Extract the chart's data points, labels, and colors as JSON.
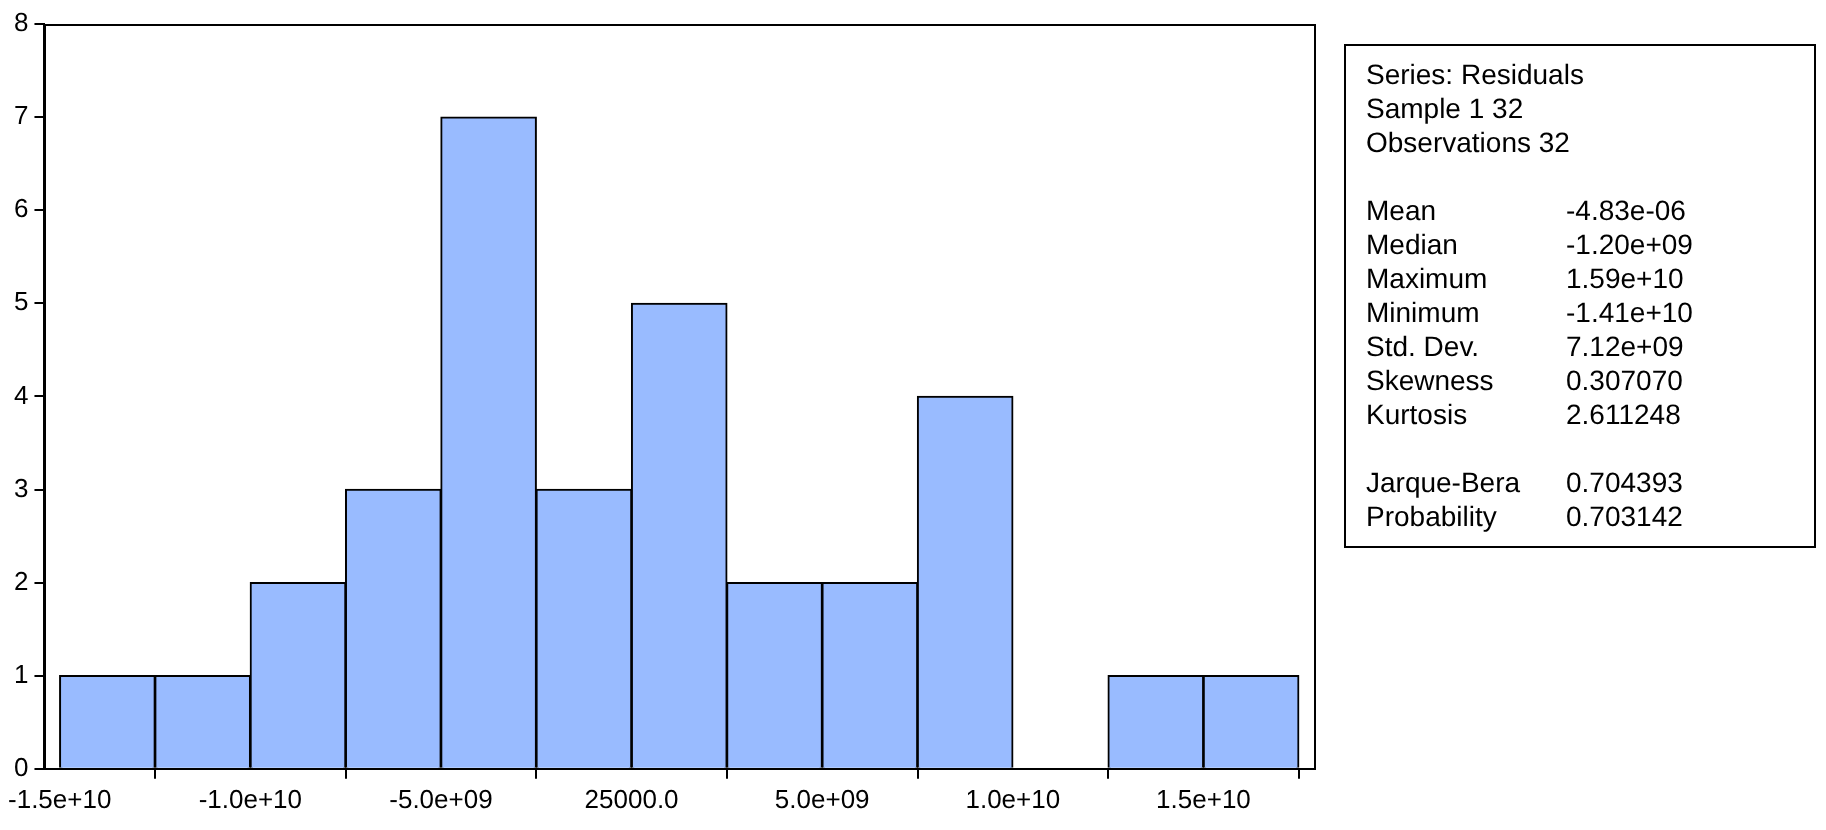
{
  "chart_data": {
    "type": "histogram",
    "bins": [
      -15000000000,
      -12500000000,
      -10000000000,
      -7500000000,
      -5000000000,
      -2500000000,
      0,
      2500000000,
      5000000000,
      7500000000,
      10000000000,
      12500000000,
      15000000000,
      17500000000
    ],
    "values": [
      1,
      1,
      2,
      3,
      7,
      3,
      5,
      2,
      2,
      4,
      0,
      1,
      1
    ],
    "color": "#99bbff",
    "xlim": [
      -15400000000,
      17900000000
    ],
    "xticks": [
      {
        "value": -15000000000,
        "label": "-1.5e+10"
      },
      {
        "value": -10000000000,
        "label": "-1.0e+10"
      },
      {
        "value": -5000000000,
        "label": "-5.0e+09"
      },
      {
        "value": 25000,
        "label": "25000.0"
      },
      {
        "value": 5000000000,
        "label": "5.0e+09"
      },
      {
        "value": 10000000000,
        "label": "1.0e+10"
      },
      {
        "value": 15000000000,
        "label": "1.5e+10"
      }
    ],
    "ylim": [
      0,
      8
    ],
    "yticks": [
      0,
      1,
      2,
      3,
      4,
      5,
      6,
      7,
      8
    ],
    "grid": false,
    "legend": false,
    "annotations": [
      "Series: Residuals",
      "Sample 1 32",
      "Observations 32",
      "Mean -4.83e-06",
      "Median -1.20e+09",
      "Maximum 1.59e+10",
      "Minimum -1.41e+10",
      "Std. Dev. 7.12e+09",
      "Skewness 0.307070",
      "Kurtosis 2.611248",
      "Jarque-Bera 0.704393",
      "Probability 0.703142"
    ]
  }
}
